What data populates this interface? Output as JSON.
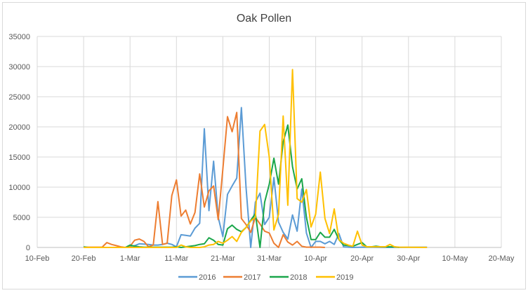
{
  "chart_data": {
    "type": "line",
    "title": "Oak Pollen",
    "xlabel": "",
    "ylabel": "",
    "ylim": [
      0,
      35000
    ],
    "yticks": [
      "0",
      "5000",
      "10000",
      "15000",
      "20000",
      "25000",
      "30000",
      "35000"
    ],
    "xlim": [
      "10-Feb",
      "20-May"
    ],
    "xticks": [
      "10-Feb",
      "20-Feb",
      "1-Mar",
      "11-Mar",
      "21-Mar",
      "31-Mar",
      "10-Apr",
      "20-Apr",
      "30-Apr",
      "10-May",
      "20-May"
    ],
    "grid": true,
    "legend": "bottom",
    "series": [
      {
        "name": "2016",
        "color": "#5B9BD5",
        "x": [
          "27-Feb",
          "28-Feb",
          "29-Feb",
          "1-Mar",
          "2-Mar",
          "3-Mar",
          "4-Mar",
          "5-Mar",
          "6-Mar",
          "7-Mar",
          "8-Mar",
          "9-Mar",
          "10-Mar",
          "11-Mar",
          "12-Mar",
          "13-Mar",
          "14-Mar",
          "15-Mar",
          "16-Mar",
          "17-Mar",
          "18-Mar",
          "19-Mar",
          "20-Mar",
          "21-Mar",
          "22-Mar",
          "23-Mar",
          "24-Mar",
          "25-Mar",
          "26-Mar",
          "27-Mar",
          "28-Mar",
          "29-Mar",
          "30-Mar",
          "31-Mar",
          "1-Apr",
          "2-Apr",
          "3-Apr",
          "4-Apr",
          "5-Apr",
          "6-Apr",
          "7-Apr",
          "8-Apr",
          "9-Apr",
          "10-Apr",
          "11-Apr",
          "12-Apr",
          "13-Apr",
          "14-Apr",
          "15-Apr",
          "16-Apr",
          "17-Apr",
          "18-Apr",
          "20-Apr",
          "25-Apr",
          "4-May"
        ],
        "y": [
          0,
          0,
          0,
          200,
          300,
          600,
          550,
          500,
          400,
          400,
          500,
          700,
          500,
          100,
          2100,
          2000,
          1900,
          3200,
          4000,
          19700,
          6100,
          14300,
          5000,
          1800,
          8800,
          10200,
          11500,
          23200,
          10000,
          0,
          7500,
          9000,
          3800,
          5000,
          11600,
          4200,
          2500,
          1400,
          5400,
          2700,
          9700,
          2400,
          0,
          1000,
          1000,
          600,
          1000,
          500,
          2300,
          100,
          50,
          0,
          50,
          0,
          50
        ]
      },
      {
        "name": "2017",
        "color": "#ED7D31",
        "x": [
          "20-Feb",
          "21-Feb",
          "22-Feb",
          "23-Feb",
          "24-Feb",
          "25-Feb",
          "26-Feb",
          "27-Feb",
          "28-Feb",
          "29-Feb",
          "1-Mar",
          "2-Mar",
          "3-Mar",
          "4-Mar",
          "5-Mar",
          "6-Mar",
          "7-Mar",
          "8-Mar",
          "9-Mar",
          "10-Mar",
          "11-Mar",
          "12-Mar",
          "13-Mar",
          "14-Mar",
          "15-Mar",
          "16-Mar",
          "17-Mar",
          "18-Mar",
          "19-Mar",
          "20-Mar",
          "21-Mar",
          "22-Mar",
          "23-Mar",
          "24-Mar",
          "25-Mar",
          "26-Mar",
          "27-Mar",
          "28-Mar",
          "29-Mar",
          "30-Mar",
          "31-Mar",
          "1-Apr",
          "2-Apr",
          "3-Apr",
          "4-Apr",
          "5-Apr",
          "6-Apr",
          "7-Apr",
          "8-Apr",
          "9-Apr",
          "10-Apr",
          "11-Apr",
          "12-Apr"
        ],
        "y": [
          0,
          50,
          50,
          50,
          50,
          800,
          500,
          300,
          100,
          0,
          200,
          1200,
          1400,
          1000,
          100,
          400,
          7600,
          500,
          700,
          8600,
          11200,
          5200,
          6200,
          3900,
          5800,
          12200,
          6700,
          9400,
          10200,
          4600,
          13000,
          21700,
          19200,
          22400,
          4800,
          3800,
          2500,
          5000,
          3900,
          2700,
          2400,
          700,
          0,
          2100,
          900,
          400,
          1000,
          200,
          50,
          50,
          50,
          50,
          0
        ]
      },
      {
        "name": "2018",
        "color": "#1AA64A",
        "x": [
          "20-Feb",
          "21-Feb",
          "29-Feb",
          "1-Mar",
          "2-Mar",
          "3-Mar",
          "4-Mar",
          "10-Mar",
          "11-Mar",
          "12-Mar",
          "13-Mar",
          "14-Mar",
          "15-Mar",
          "16-Mar",
          "17-Mar",
          "18-Mar",
          "19-Mar",
          "20-Mar",
          "21-Mar",
          "22-Mar",
          "23-Mar",
          "24-Mar",
          "25-Mar",
          "26-Mar",
          "27-Mar",
          "28-Mar",
          "29-Mar",
          "30-Mar",
          "31-Mar",
          "1-Apr",
          "2-Apr",
          "3-Apr",
          "4-Apr",
          "5-Apr",
          "6-Apr",
          "7-Apr",
          "8-Apr",
          "9-Apr",
          "10-Apr",
          "11-Apr",
          "12-Apr",
          "13-Apr",
          "14-Apr",
          "15-Apr",
          "16-Apr",
          "17-Apr",
          "18-Apr",
          "19-Apr",
          "20-Apr",
          "21-Apr",
          "22-Apr",
          "23-Apr",
          "24-Apr",
          "25-Apr",
          "26-Apr",
          "27-Apr",
          "28-Apr"
        ],
        "y": [
          100,
          0,
          0,
          400,
          200,
          100,
          50,
          50,
          100,
          0,
          100,
          200,
          300,
          500,
          600,
          1600,
          1200,
          500,
          400,
          3100,
          3700,
          3000,
          2600,
          3300,
          4500,
          5600,
          0,
          7500,
          10500,
          14800,
          10500,
          17500,
          20300,
          13400,
          9700,
          11400,
          5000,
          1300,
          1300,
          2500,
          1700,
          1700,
          3000,
          1300,
          400,
          300,
          200,
          500,
          800,
          100,
          100,
          200,
          100,
          100,
          100,
          100,
          0
        ]
      },
      {
        "name": "2019",
        "color": "#FFC000",
        "x": [
          "20-Feb",
          "11-Mar",
          "12-Mar",
          "13-Mar",
          "14-Mar",
          "15-Mar",
          "16-Mar",
          "17-Mar",
          "18-Mar",
          "19-Mar",
          "20-Mar",
          "21-Mar",
          "22-Mar",
          "23-Mar",
          "24-Mar",
          "25-Mar",
          "26-Mar",
          "27-Mar",
          "28-Mar",
          "29-Mar",
          "30-Mar",
          "31-Mar",
          "1-Apr",
          "2-Apr",
          "3-Apr",
          "4-Apr",
          "5-Apr",
          "6-Apr",
          "7-Apr",
          "8-Apr",
          "9-Apr",
          "10-Apr",
          "11-Apr",
          "12-Apr",
          "13-Apr",
          "14-Apr",
          "15-Apr",
          "16-Apr",
          "17-Apr",
          "18-Apr",
          "19-Apr",
          "20-Apr",
          "21-Apr",
          "22-Apr",
          "25-Apr",
          "26-Apr",
          "27-Apr",
          "28-Apr",
          "4-May"
        ],
        "y": [
          0,
          0,
          400,
          100,
          0,
          0,
          0,
          100,
          400,
          500,
          1000,
          700,
          1200,
          1800,
          1000,
          2500,
          3300,
          4400,
          5000,
          19300,
          20400,
          15000,
          2900,
          5500,
          21800,
          7000,
          29500,
          8100,
          7500,
          9600,
          3400,
          5500,
          12500,
          4800,
          2300,
          6400,
          1300,
          700,
          400,
          200,
          2700,
          400,
          100,
          100,
          100,
          500,
          100,
          50,
          0
        ]
      }
    ]
  }
}
